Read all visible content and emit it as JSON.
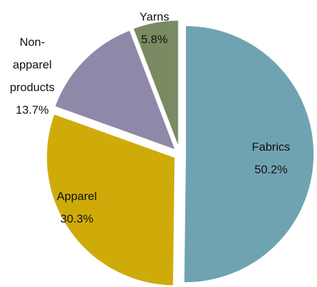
{
  "chart_data": {
    "type": "pie",
    "categories": [
      "Fabrics",
      "Apparel",
      "Non-apparel products",
      "Yarns"
    ],
    "values": [
      50.2,
      30.3,
      13.7,
      5.8
    ],
    "value_labels": [
      "50.2%",
      "30.3%",
      "13.7%",
      "5.8%"
    ],
    "colors": [
      "#6fa3b2",
      "#cfab0a",
      "#8f88a8",
      "#7a8a62"
    ],
    "start_angle": 90,
    "direction": "clockwise"
  }
}
